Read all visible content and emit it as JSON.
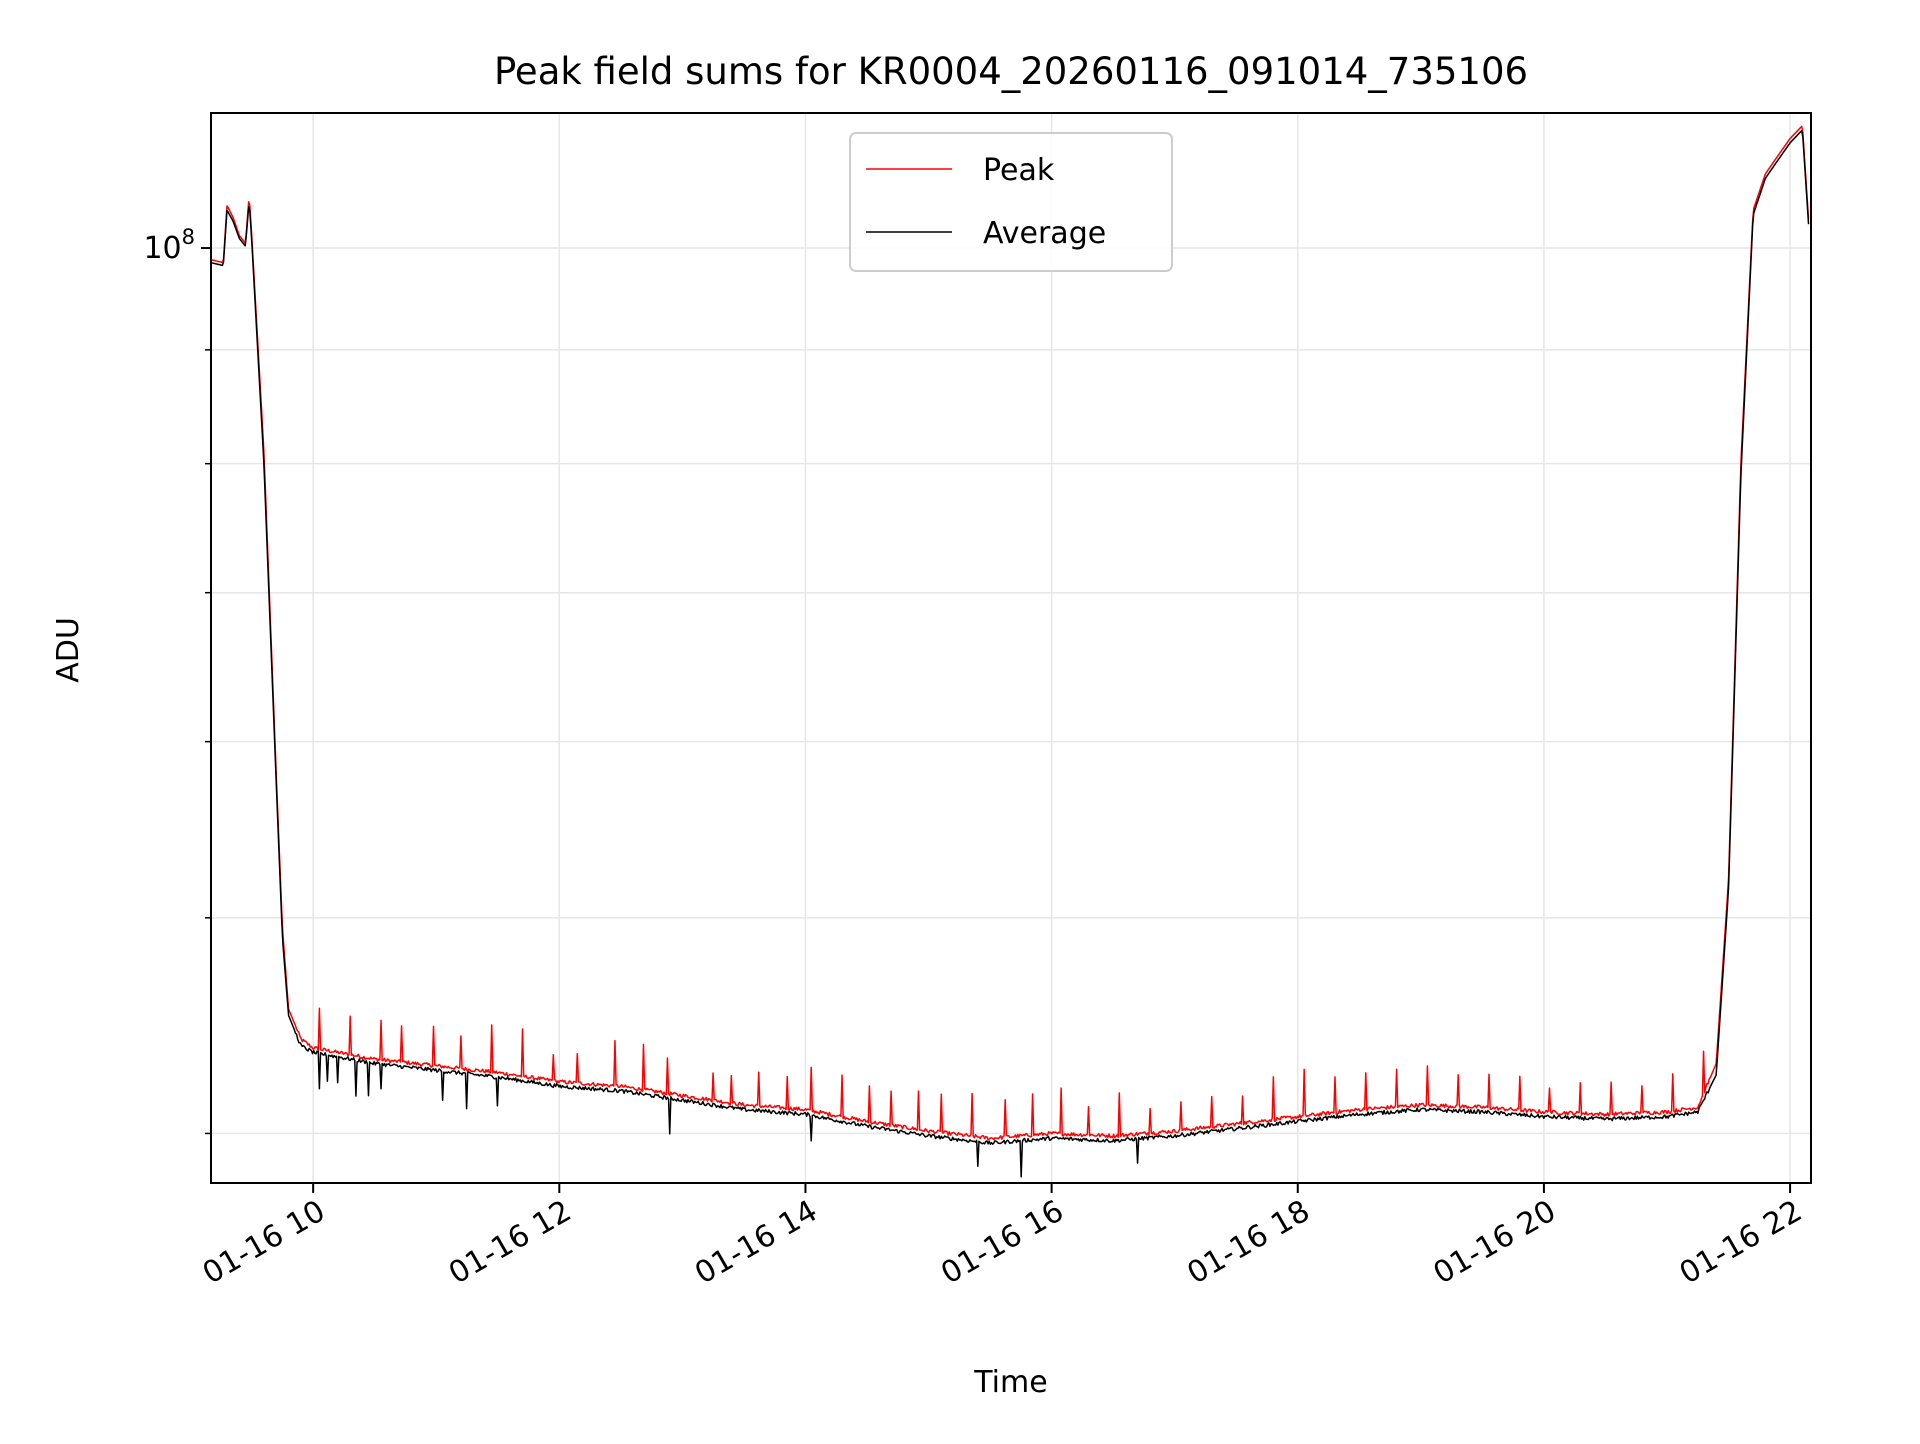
{
  "chart_data": {
    "type": "line",
    "title": "Peak field sums for KR0004_20260116_091014_735106",
    "xlabel": "Time",
    "ylabel": "ADU",
    "yscale": "log",
    "xlim": [
      9.17,
      22.17
    ],
    "ylim": [
      38000000,
      115000000
    ],
    "x_unit": "hours of day (2026-01-16)",
    "x_ticks": [
      {
        "value": 10,
        "label": "01-16 10"
      },
      {
        "value": 12,
        "label": "01-16 12"
      },
      {
        "value": 14,
        "label": "01-16 14"
      },
      {
        "value": 16,
        "label": "01-16 16"
      },
      {
        "value": 18,
        "label": "01-16 18"
      },
      {
        "value": 20,
        "label": "01-16 20"
      },
      {
        "value": 22,
        "label": "01-16 22"
      }
    ],
    "y_major_ticks": [
      {
        "value": 100000000,
        "base": "10",
        "exp": "8"
      }
    ],
    "y_minor_ticks": [
      40000000,
      50000000,
      60000000,
      70000000,
      80000000,
      90000000
    ],
    "grid": true,
    "legend_position": "top-center",
    "series": [
      {
        "name": "Peak",
        "color": "#ff0000",
        "points": [
          [
            9.17,
            98800000
          ],
          [
            9.27,
            98500000
          ],
          [
            9.3,
            104500000
          ],
          [
            9.35,
            103200000
          ],
          [
            9.4,
            101300000
          ],
          [
            9.45,
            100500000
          ],
          [
            9.48,
            105600000
          ],
          [
            9.5,
            101500000
          ],
          [
            9.6,
            81000000
          ],
          [
            9.7,
            58000000
          ],
          [
            9.75,
            49500000
          ],
          [
            9.8,
            45500000
          ],
          [
            9.9,
            44100000
          ],
          [
            10.0,
            43700000
          ],
          [
            10.5,
            43200000
          ],
          [
            11.0,
            42900000
          ],
          [
            11.5,
            42600000
          ],
          [
            12.0,
            42200000
          ],
          [
            12.5,
            42000000
          ],
          [
            13.0,
            41600000
          ],
          [
            13.5,
            41200000
          ],
          [
            14.0,
            41000000
          ],
          [
            14.5,
            40500000
          ],
          [
            15.0,
            40100000
          ],
          [
            15.5,
            39800000
          ],
          [
            16.0,
            40000000
          ],
          [
            16.5,
            39900000
          ],
          [
            17.0,
            40100000
          ],
          [
            17.5,
            40400000
          ],
          [
            18.0,
            40700000
          ],
          [
            18.5,
            41000000
          ],
          [
            19.0,
            41200000
          ],
          [
            19.5,
            41100000
          ],
          [
            20.0,
            40900000
          ],
          [
            20.5,
            40800000
          ],
          [
            21.0,
            40900000
          ],
          [
            21.25,
            41100000
          ],
          [
            21.4,
            43000000
          ],
          [
            21.5,
            52000000
          ],
          [
            21.6,
            80000000
          ],
          [
            21.7,
            104000000
          ],
          [
            21.8,
            108000000
          ],
          [
            21.9,
            110000000
          ],
          [
            22.0,
            112000000
          ],
          [
            22.1,
            113500000
          ],
          [
            22.15,
            103000000
          ]
        ],
        "spike_times": [
          10.05,
          10.3,
          10.55,
          10.72,
          10.98,
          11.2,
          11.45,
          11.7,
          11.95,
          12.15,
          12.45,
          12.68,
          12.88,
          13.25,
          13.4,
          13.62,
          13.85,
          14.05,
          14.3,
          14.52,
          14.7,
          14.92,
          15.1,
          15.35,
          15.62,
          15.85,
          16.08,
          16.3,
          16.55,
          16.8,
          17.05,
          17.3,
          17.55,
          17.8,
          18.05,
          18.3,
          18.55,
          18.8,
          19.05,
          19.3,
          19.55,
          19.8,
          20.05,
          20.3,
          20.55,
          20.8,
          21.05,
          21.3
        ]
      },
      {
        "name": "Average",
        "color": "#000000",
        "points": [
          [
            9.17,
            98500000
          ],
          [
            9.27,
            98200000
          ],
          [
            9.3,
            104000000
          ],
          [
            9.35,
            102800000
          ],
          [
            9.4,
            101000000
          ],
          [
            9.45,
            100200000
          ],
          [
            9.48,
            105000000
          ],
          [
            9.5,
            101000000
          ],
          [
            9.6,
            80000000
          ],
          [
            9.7,
            57500000
          ],
          [
            9.75,
            49000000
          ],
          [
            9.8,
            45200000
          ],
          [
            9.9,
            43800000
          ],
          [
            10.0,
            43500000
          ],
          [
            10.5,
            43000000
          ],
          [
            11.0,
            42700000
          ],
          [
            11.5,
            42400000
          ],
          [
            12.0,
            42000000
          ],
          [
            12.5,
            41800000
          ],
          [
            13.0,
            41400000
          ],
          [
            13.5,
            41000000
          ],
          [
            14.0,
            40800000
          ],
          [
            14.5,
            40300000
          ],
          [
            15.0,
            39900000
          ],
          [
            15.5,
            39600000
          ],
          [
            16.0,
            39800000
          ],
          [
            16.5,
            39700000
          ],
          [
            17.0,
            39900000
          ],
          [
            17.5,
            40200000
          ],
          [
            18.0,
            40500000
          ],
          [
            18.5,
            40800000
          ],
          [
            19.0,
            41000000
          ],
          [
            19.5,
            40900000
          ],
          [
            20.0,
            40700000
          ],
          [
            20.5,
            40600000
          ],
          [
            21.0,
            40700000
          ],
          [
            21.25,
            40900000
          ],
          [
            21.4,
            42500000
          ],
          [
            21.5,
            51500000
          ],
          [
            21.6,
            79000000
          ],
          [
            21.7,
            103500000
          ],
          [
            21.8,
            107500000
          ],
          [
            21.9,
            109500000
          ],
          [
            22.0,
            111500000
          ],
          [
            22.1,
            113000000
          ],
          [
            22.15,
            102500000
          ]
        ],
        "dip_times": [
          10.05,
          10.12,
          10.2,
          10.35,
          10.45,
          10.55,
          11.05,
          11.25,
          11.5,
          12.9,
          14.05,
          15.4,
          15.75,
          16.7
        ]
      }
    ]
  }
}
